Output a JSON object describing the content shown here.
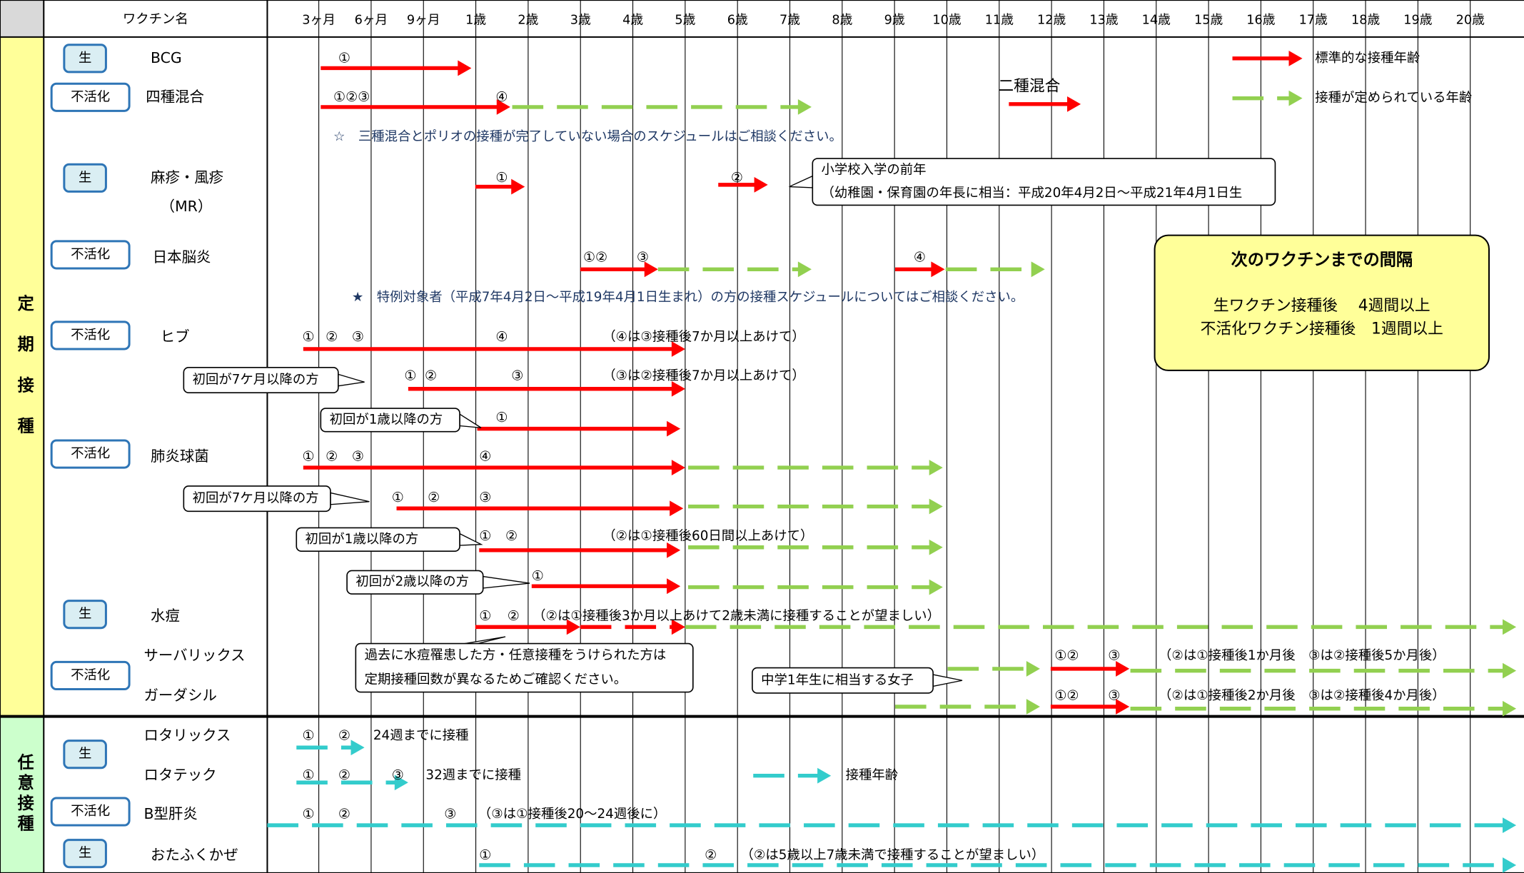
{
  "header": {
    "vaccine_column": "ワクチン名",
    "ages": [
      "3ヶ月",
      "6ヶ月",
      "9ヶ月",
      "1歳",
      "2歳",
      "3歳",
      "4歳",
      "5歳",
      "6歳",
      "7歳",
      "8歳",
      "9歳",
      "10歳",
      "11歳",
      "12歳",
      "13歳",
      "14歳",
      "15歳",
      "16歳",
      "17歳",
      "18歳",
      "19歳",
      "20歳"
    ]
  },
  "sections": [
    "定期接種",
    "任意接種"
  ],
  "badges": [
    "生",
    "不活化",
    "生",
    "不活化",
    "不活化",
    "不活化",
    "生",
    "不活化",
    "生",
    "不活化",
    "生"
  ],
  "vaccines": [
    "BCG",
    "四種混合",
    "麻疹・風疹",
    "（MR）",
    "日本脳炎",
    "ヒブ",
    "肺炎球菌",
    "水痘",
    "サーバリックス",
    "ガーダシル",
    "ロタリックス",
    "ロタテック",
    "B型肝炎",
    "おたふくかぜ"
  ],
  "marks": [
    "①",
    "①②③",
    "④",
    "①",
    "②",
    "①②",
    "③",
    "④",
    "①",
    "②",
    "③",
    "④",
    "①",
    "②",
    "③",
    "①",
    "①",
    "②",
    "③",
    "④",
    "①",
    "②",
    "③",
    "①",
    "②",
    "①",
    "①",
    "②",
    "①②",
    "③",
    "①②",
    "③",
    "①",
    "②",
    "①",
    "②",
    "③",
    "①",
    "②",
    "③",
    "①",
    "②"
  ],
  "notes": [
    "☆　三種混合とポリオの接種が完了していない場合のスケジュールはご相談ください。",
    "二種混合",
    "★　特例対象者（平成7年4月2日～平成19年4月1日生まれ）の方の接種スケジュールについてはご相談ください。",
    "（④は③接種後7か月以上あけて）",
    "（③は②接種後7か月以上あけて）",
    "（②は①接種後60日間以上あけて）",
    "（②は①接種後3か月以上あけて2歳未満に接種することが望ましい）",
    "（②は①接種後1か月後　③は②接種後5か月後）",
    "（②は①接種後2か月後　③は②接種後4か月後）",
    "24週までに接種",
    "32週までに接種",
    "（③は①接種後20～24週後に）",
    "（②は5歳以上7歳未満で接種することが望ましい）"
  ],
  "callouts": [
    [
      "小学校入学の前年",
      "（幼稚園・保育園の年長に相当：平成20年4月2日～平成21年4月1日生"
    ],
    [
      "初回が7ケ月以降の方"
    ],
    [
      "初回が1歳以降の方"
    ],
    [
      "初回が7ケ月以降の方"
    ],
    [
      "初回が1歳以降の方"
    ],
    [
      "初回が2歳以降の方"
    ],
    [
      "過去に水痘罹患した方・任意接種をうけられた方は",
      "定期接種回数が異なるためご確認ください。"
    ],
    [
      "中学1年生に相当する女子"
    ]
  ],
  "legend": [
    "標準的な接種年齢",
    "接種が定められている年齢",
    "接種年齢"
  ],
  "interval_box": {
    "title": "次のワクチンまでの間隔",
    "lines": [
      "生ワクチン接種後　 4週間以上",
      "不活化ワクチン接種後　1週間以上"
    ]
  }
}
